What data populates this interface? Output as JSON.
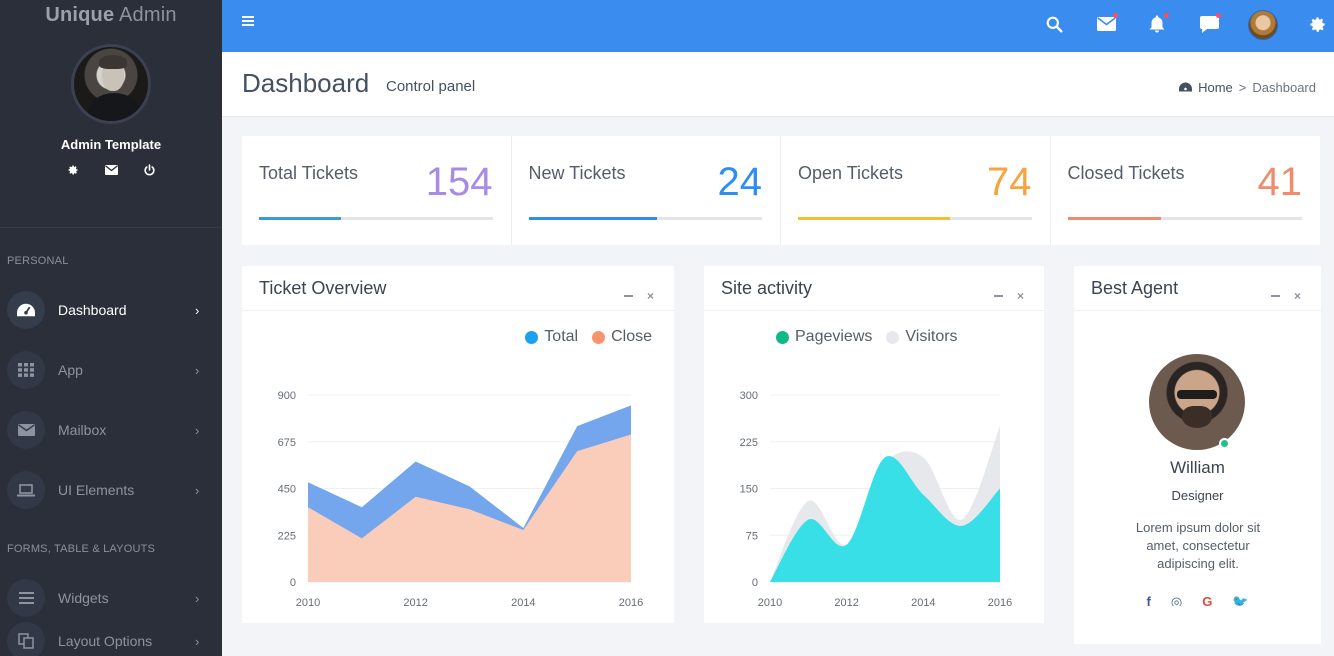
{
  "brand": {
    "strong": "Unique",
    "light": "Admin"
  },
  "user": {
    "name": "Admin Template"
  },
  "sidebar": {
    "section_personal": "PERSONAL",
    "section_forms": "FORMS, TABLE & LAYOUTS",
    "items": [
      {
        "label": "Dashboard",
        "icon": "dashboard-icon",
        "active": true
      },
      {
        "label": "App",
        "icon": "grid-icon"
      },
      {
        "label": "Mailbox",
        "icon": "mail-icon"
      },
      {
        "label": "UI Elements",
        "icon": "laptop-icon"
      },
      {
        "label": "Widgets",
        "icon": "menu-icon"
      },
      {
        "label": "Layout Options",
        "icon": "copy-icon"
      }
    ]
  },
  "header": {
    "title": "Dashboard",
    "subtitle": "Control panel"
  },
  "breadcrumb": {
    "home": "Home",
    "sep": ">",
    "current": "Dashboard"
  },
  "stats": [
    {
      "label": "Total Tickets",
      "value": "154",
      "color": "#a78be4",
      "bar": "#3b9ad9",
      "progress": 0.35
    },
    {
      "label": "New Tickets",
      "value": "24",
      "color": "#2f8ff0",
      "bar": "#2f8ff0",
      "progress": 0.55
    },
    {
      "label": "Open Tickets",
      "value": "74",
      "color": "#f7a340",
      "bar": "#f3c02f",
      "progress": 0.65
    },
    {
      "label": "Closed Tickets",
      "value": "41",
      "color": "#f08c6e",
      "bar": "#f08c6e",
      "progress": 0.4
    }
  ],
  "ticket_card": {
    "title": "Ticket Overview"
  },
  "site_card": {
    "title": "Site activity"
  },
  "agent_card": {
    "title": "Best Agent",
    "name": "William",
    "role": "Designer",
    "bio": "Lorem ipsum dolor sit amet, consectetur adipiscing elit.",
    "social": [
      "f",
      "◎",
      "G",
      "🐦"
    ]
  },
  "chart_data": [
    {
      "type": "area",
      "x": [
        2010,
        2011,
        2012,
        2013,
        2014,
        2015,
        2016
      ],
      "x_ticks": [
        "2010",
        "2012",
        "2014",
        "2016"
      ],
      "y_ticks": [
        "900",
        "675",
        "450",
        "225",
        "0"
      ],
      "ylim": [
        0,
        900
      ],
      "legend": "top-right",
      "series": [
        {
          "name": "Total",
          "color": "#74a6ee",
          "values": [
            480,
            360,
            580,
            460,
            260,
            750,
            850
          ]
        },
        {
          "name": "Close",
          "color": "#f9cdb9",
          "values": [
            360,
            210,
            410,
            350,
            250,
            630,
            710
          ]
        }
      ]
    },
    {
      "type": "area",
      "x": [
        2010,
        2011,
        2012,
        2013,
        2014,
        2015,
        2016
      ],
      "x_ticks": [
        "2010",
        "2012",
        "2014",
        "2016"
      ],
      "y_ticks": [
        "300",
        "225",
        "150",
        "75",
        "0"
      ],
      "ylim": [
        0,
        300
      ],
      "legend": "top",
      "series": [
        {
          "name": "Pageviews",
          "color": "#39dfe6",
          "values": [
            0,
            100,
            60,
            200,
            140,
            90,
            150
          ]
        },
        {
          "name": "Visitors",
          "color": "#e6e8ec",
          "values": [
            0,
            130,
            60,
            190,
            200,
            100,
            250
          ]
        }
      ]
    }
  ]
}
